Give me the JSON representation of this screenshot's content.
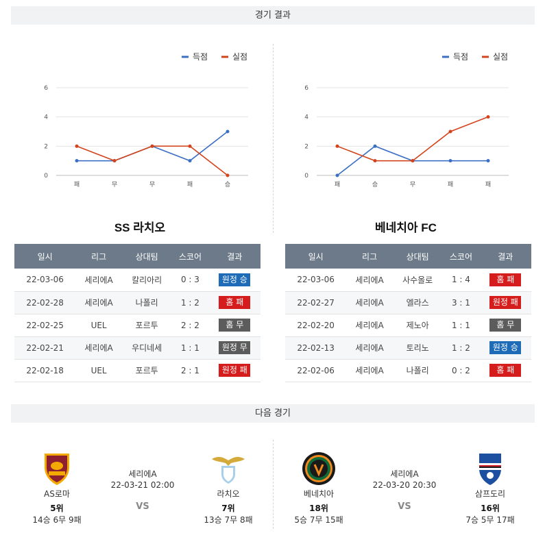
{
  "sections": {
    "results": "경기 결과",
    "next": "다음 경기"
  },
  "legend": {
    "scored": "득점",
    "conceded": "실점"
  },
  "colors": {
    "scored": "#3a6fc4",
    "conceded": "#d3441c",
    "header": "#6c7a89"
  },
  "chart_data": [
    {
      "type": "line",
      "categories": [
        "패",
        "무",
        "무",
        "패",
        "승"
      ],
      "ylim": [
        0,
        6
      ],
      "yticks": [
        0,
        2,
        4,
        6
      ],
      "legend": "top-right",
      "grid": true,
      "series": [
        {
          "name": "득점",
          "values": [
            1,
            1,
            2,
            1,
            3
          ]
        },
        {
          "name": "실점",
          "values": [
            2,
            1,
            2,
            2,
            0
          ]
        }
      ]
    },
    {
      "type": "line",
      "categories": [
        "패",
        "승",
        "무",
        "패",
        "패"
      ],
      "ylim": [
        0,
        6
      ],
      "yticks": [
        0,
        2,
        4,
        6
      ],
      "legend": "top-right",
      "grid": true,
      "series": [
        {
          "name": "득점",
          "values": [
            0,
            2,
            1,
            1,
            1
          ]
        },
        {
          "name": "실점",
          "values": [
            2,
            1,
            1,
            3,
            4
          ]
        }
      ]
    }
  ],
  "teams": {
    "left": {
      "title": "SS 라치오",
      "rows": [
        {
          "date": "22-03-06",
          "league": "세리에A",
          "opponent": "칼리아리",
          "score": "0 : 3",
          "result": "원정 승",
          "color": "blue"
        },
        {
          "date": "22-02-28",
          "league": "세리에A",
          "opponent": "나폴리",
          "score": "1 : 2",
          "result": "홈 패",
          "color": "red"
        },
        {
          "date": "22-02-25",
          "league": "UEL",
          "opponent": "포르투",
          "score": "2 : 2",
          "result": "홈 무",
          "color": "gray"
        },
        {
          "date": "22-02-21",
          "league": "세리에A",
          "opponent": "우디네세",
          "score": "1 : 1",
          "result": "원정 무",
          "color": "gray"
        },
        {
          "date": "22-02-18",
          "league": "UEL",
          "opponent": "포르투",
          "score": "2 : 1",
          "result": "원정 패",
          "color": "red"
        }
      ]
    },
    "right": {
      "title": "베네치아 FC",
      "rows": [
        {
          "date": "22-03-06",
          "league": "세리에A",
          "opponent": "사수올로",
          "score": "1 : 4",
          "result": "홈 패",
          "color": "red"
        },
        {
          "date": "22-02-27",
          "league": "세리에A",
          "opponent": "엘라스",
          "score": "3 : 1",
          "result": "원정 패",
          "color": "red"
        },
        {
          "date": "22-02-20",
          "league": "세리에A",
          "opponent": "제노아",
          "score": "1 : 1",
          "result": "홈 무",
          "color": "gray"
        },
        {
          "date": "22-02-13",
          "league": "세리에A",
          "opponent": "토리노",
          "score": "1 : 2",
          "result": "원정 승",
          "color": "blue"
        },
        {
          "date": "22-02-06",
          "league": "세리에A",
          "opponent": "나폴리",
          "score": "0 : 2",
          "result": "홈 패",
          "color": "red"
        }
      ]
    }
  },
  "table_headers": [
    "일시",
    "리그",
    "상대팀",
    "스코어",
    "결과"
  ],
  "next_matches": [
    {
      "league": "세리에A",
      "datetime": "22-03-21 02:00",
      "vs": "VS",
      "home": {
        "name": "AS로마",
        "rank": "5위",
        "record": "14승 6무 9패",
        "logo": "as-roma-crest"
      },
      "away": {
        "name": "라치오",
        "rank": "7위",
        "record": "13승 7무 8패",
        "logo": "lazio-eagle-crest"
      }
    },
    {
      "league": "세리에A",
      "datetime": "22-03-20 20:30",
      "vs": "VS",
      "home": {
        "name": "베네치아",
        "rank": "18위",
        "record": "5승 7무 15패",
        "logo": "venezia-crest"
      },
      "away": {
        "name": "삼프도리",
        "rank": "16위",
        "record": "7승 5무 17패",
        "logo": "sampdoria-crest"
      }
    }
  ]
}
